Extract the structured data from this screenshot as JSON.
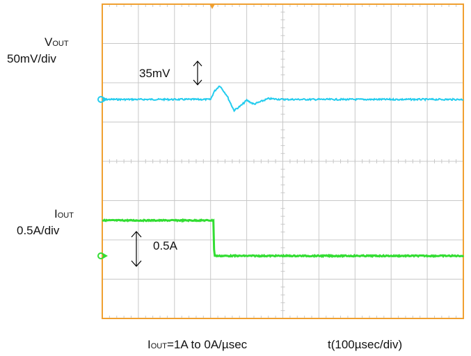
{
  "chart_data": {
    "type": "line",
    "time_scale": "t(100µsec/div)",
    "load_step": {
      "main": "I",
      "sub": "OUT",
      "rest": "=1A to 0A/µsec"
    },
    "colors": {
      "frame": "#F0A030",
      "grid": "#C8C8C8",
      "vout": "#22CCEE",
      "iout": "#33DD33"
    },
    "divisions": {
      "x": 10,
      "y": 8
    },
    "series": [
      {
        "label_main": "V",
        "label_sub": "OUT",
        "scale": "50mV/div",
        "annotation": "35mV",
        "x": [
          0,
          3.0,
          3.1,
          3.25,
          3.45,
          3.65,
          3.85,
          4.0,
          4.2,
          4.6,
          5.0,
          10
        ],
        "y": [
          0,
          0,
          0.2,
          0.35,
          0.1,
          -0.28,
          -0.15,
          -0.02,
          -0.12,
          0.02,
          0,
          0
        ]
      },
      {
        "label_main": "I",
        "label_sub": "OUT",
        "scale": "0.5A/div",
        "annotation": "0.5A",
        "x": [
          0,
          3.08,
          3.1,
          10
        ],
        "y": [
          1,
          1,
          0,
          0
        ]
      }
    ]
  }
}
